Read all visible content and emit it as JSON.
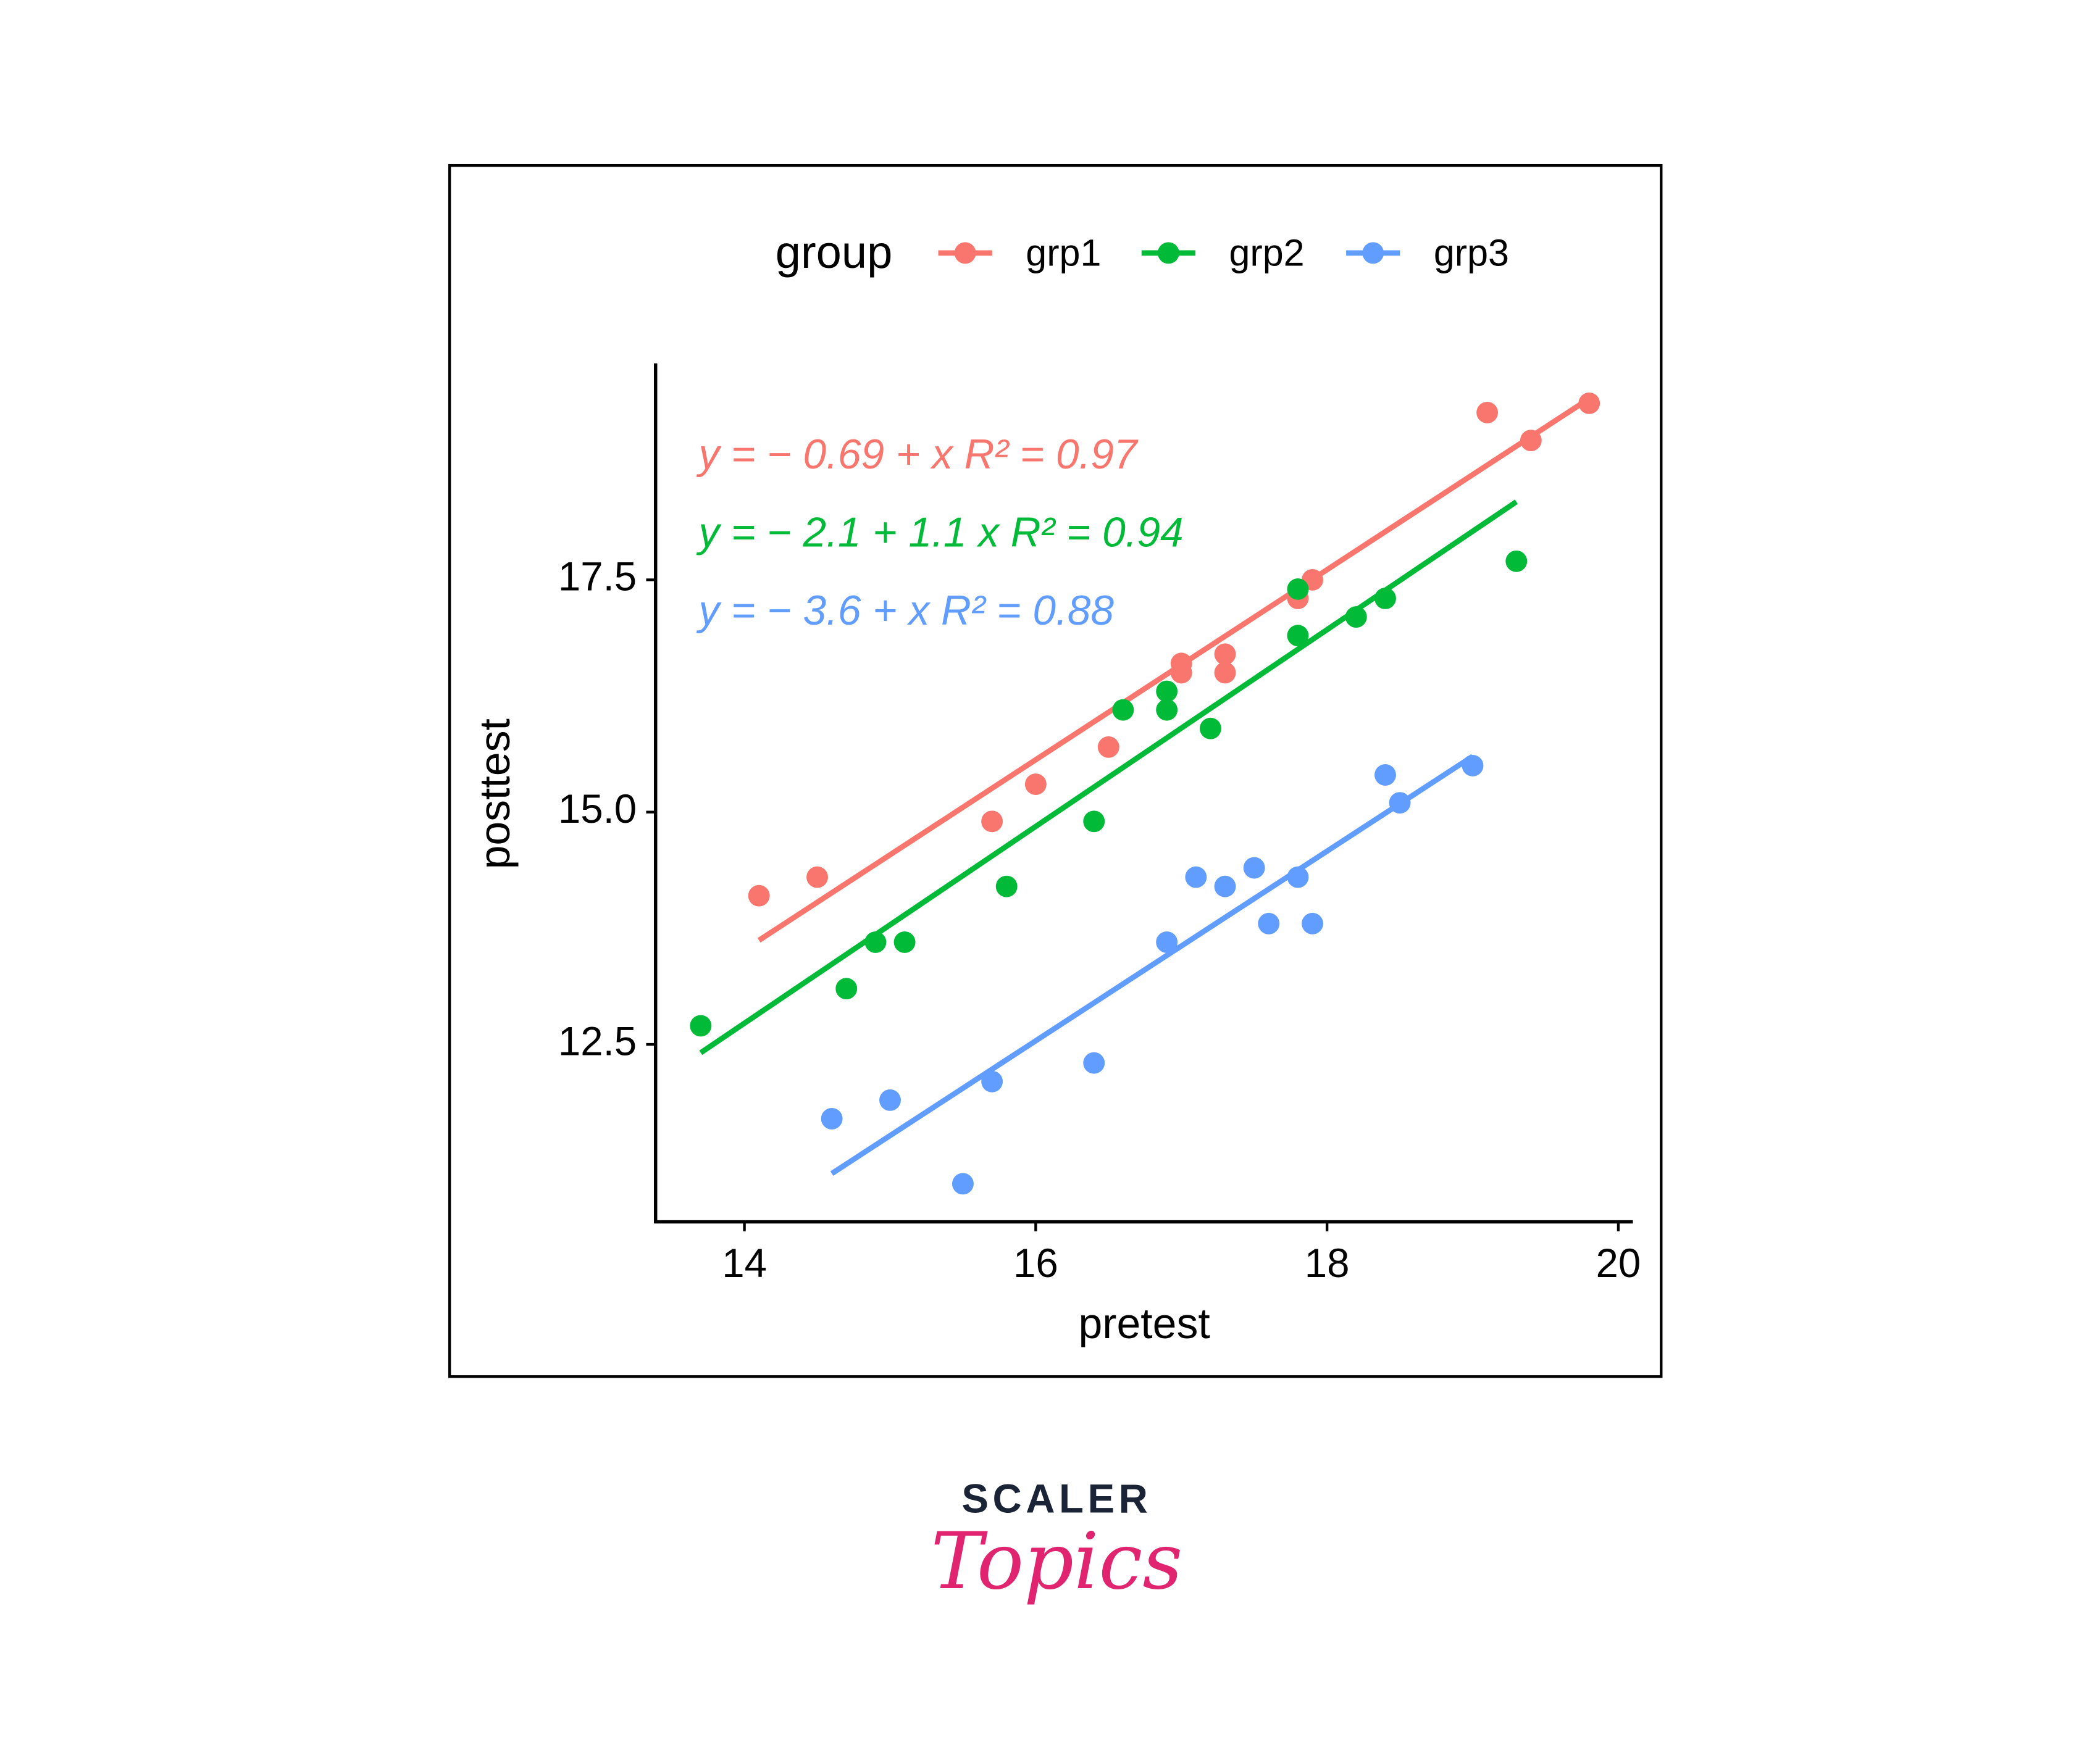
{
  "chart_data": {
    "type": "scatter",
    "xlabel": "pretest",
    "ylabel": "posttest",
    "xlim": [
      13.39,
      20.1
    ],
    "xticks": [
      14,
      16,
      18,
      20
    ],
    "ylim": [
      10.59,
      19.83
    ],
    "yticks": [
      12.5,
      {
        "value": 15,
        "label": "15.0"
      },
      17.5
    ],
    "legend": {
      "title": "group",
      "position": "top"
    },
    "series": [
      {
        "name": "grp1",
        "color": "#f8766d",
        "x": [
          14.1,
          14.5,
          15.7,
          16.0,
          16.5,
          17.0,
          17.0,
          17.3,
          17.3,
          17.8,
          17.9,
          19.1,
          19.4,
          19.8
        ],
        "values": [
          14.1,
          14.3,
          14.9,
          15.3,
          15.7,
          16.6,
          16.5,
          16.7,
          16.5,
          17.3,
          17.5,
          19.3,
          19.0,
          19.4
        ],
        "fit": {
          "x": [
            14.1,
            19.8
          ],
          "y": [
            13.62,
            19.45
          ]
        },
        "equation": "y = − 0.69 +  x    R² = 0.97"
      },
      {
        "name": "grp2",
        "color": "#00ba38",
        "x": [
          13.7,
          14.7,
          14.9,
          15.1,
          15.8,
          16.4,
          16.6,
          16.9,
          16.9,
          17.2,
          17.8,
          17.8,
          18.2,
          18.4,
          19.3
        ],
        "values": [
          12.7,
          13.1,
          13.6,
          13.6,
          14.2,
          14.9,
          16.1,
          16.3,
          16.1,
          15.9,
          17.4,
          16.9,
          17.1,
          17.3,
          17.7
        ],
        "fit": {
          "x": [
            13.7,
            19.3
          ],
          "y": [
            12.41,
            18.34
          ]
        },
        "equation": "y = − 2.1 + 1.1 x    R² = 0.94"
      },
      {
        "name": "grp3",
        "color": "#619cff",
        "x": [
          14.6,
          15.0,
          15.5,
          15.7,
          16.4,
          16.9,
          17.1,
          17.3,
          17.5,
          17.6,
          17.8,
          17.9,
          18.4,
          18.5,
          19.0
        ],
        "values": [
          11.7,
          11.9,
          11.0,
          12.1,
          12.3,
          13.6,
          14.3,
          14.2,
          14.4,
          13.8,
          14.3,
          13.8,
          15.4,
          15.1,
          15.5
        ],
        "fit": {
          "x": [
            14.6,
            19.0
          ],
          "y": [
            11.11,
            15.6
          ]
        },
        "equation": "y = − 3.6 +  x    R² = 0.88"
      }
    ]
  },
  "branding": {
    "top": "SCALER",
    "bottom": "Topics"
  }
}
